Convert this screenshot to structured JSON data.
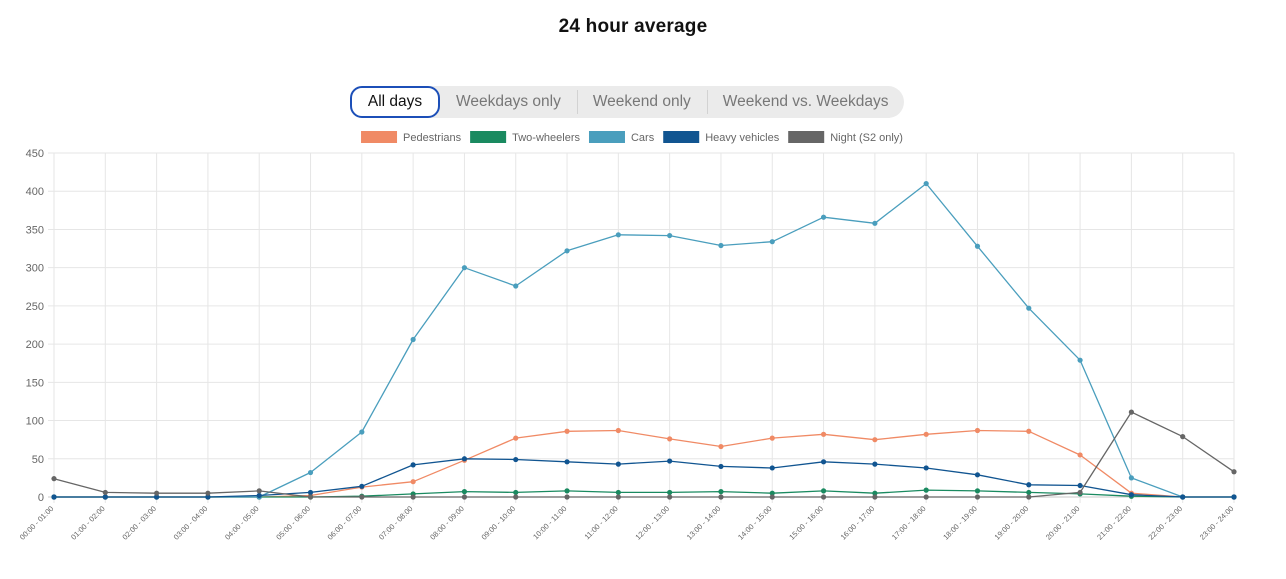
{
  "page": {
    "title": "24 hour average"
  },
  "tabs": [
    {
      "label": "All days",
      "active": true
    },
    {
      "label": "Weekdays only",
      "active": false
    },
    {
      "label": "Weekend only",
      "active": false
    },
    {
      "label": "Weekend vs. Weekdays",
      "active": false
    }
  ],
  "chart_data": {
    "type": "line",
    "title": "",
    "xlabel": "",
    "ylabel": "",
    "ylim": [
      0,
      450
    ],
    "yticks": [
      0,
      50,
      100,
      150,
      200,
      250,
      300,
      350,
      400,
      450
    ],
    "grid": true,
    "legend_position": "top",
    "categories": [
      "00:00 - 01:00",
      "01:00 - 02:00",
      "02:00 - 03:00",
      "03:00 - 04:00",
      "04:00 - 05:00",
      "05:00 - 06:00",
      "06:00 - 07:00",
      "07:00 - 08:00",
      "08:00 - 09:00",
      "09:00 - 10:00",
      "10:00 - 11:00",
      "11:00 - 12:00",
      "12:00 - 13:00",
      "13:00 - 14:00",
      "14:00 - 15:00",
      "15:00 - 16:00",
      "16:00 - 17:00",
      "17:00 - 18:00",
      "18:00 - 19:00",
      "19:00 - 20:00",
      "20:00 - 21:00",
      "21:00 - 22:00",
      "22:00 - 23:00",
      "23:00 - 24:00"
    ],
    "series": [
      {
        "name": "Pedestrians",
        "color": "#f08a65",
        "values": [
          0,
          0,
          0,
          0,
          0,
          2,
          13,
          20,
          48,
          77,
          86,
          87,
          76,
          66,
          77,
          82,
          75,
          82,
          87,
          86,
          55,
          5,
          0,
          0
        ]
      },
      {
        "name": "Two-wheelers",
        "color": "#1a8a60",
        "values": [
          0,
          0,
          0,
          0,
          0,
          0,
          1,
          4,
          7,
          6,
          8,
          6,
          6,
          7,
          5,
          8,
          5,
          9,
          8,
          6,
          4,
          1,
          0,
          0
        ]
      },
      {
        "name": "Cars",
        "color": "#4a9ebd",
        "values": [
          0,
          0,
          0,
          0,
          0,
          32,
          85,
          206,
          300,
          276,
          322,
          343,
          342,
          329,
          334,
          366,
          358,
          410,
          328,
          247,
          179,
          25,
          0,
          0
        ]
      },
      {
        "name": "Heavy vehicles",
        "color": "#115591",
        "values": [
          0,
          0,
          0,
          0,
          2,
          6,
          14,
          42,
          50,
          49,
          46,
          43,
          47,
          40,
          38,
          46,
          43,
          38,
          29,
          16,
          15,
          3,
          0,
          0
        ]
      },
      {
        "name": "Night (S2 only)",
        "color": "#666666",
        "values": [
          24,
          6,
          5,
          5,
          8,
          0,
          0,
          0,
          0,
          0,
          0,
          0,
          0,
          0,
          0,
          0,
          0,
          0,
          0,
          0,
          6,
          111,
          79,
          33
        ]
      }
    ]
  }
}
